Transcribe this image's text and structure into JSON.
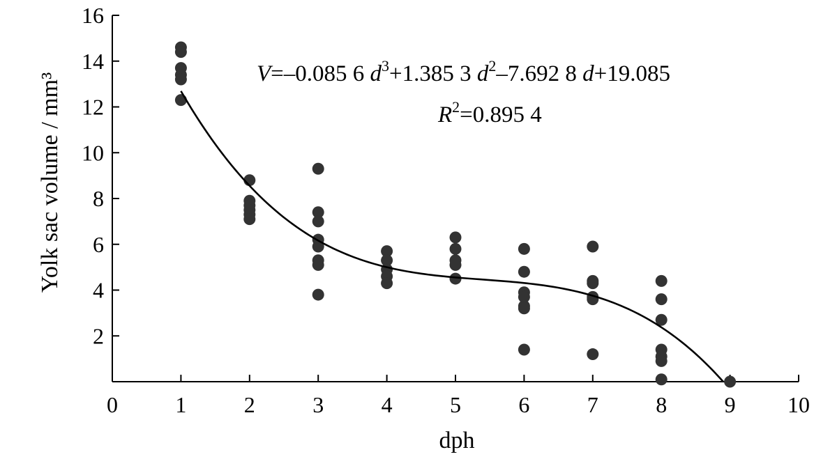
{
  "chart_data": {
    "type": "scatter",
    "xlabel": "dph",
    "ylabel": "Yolk sac volume / mm³",
    "xlim": [
      0,
      10
    ],
    "ylim": [
      0,
      16
    ],
    "xticks": [
      0,
      1,
      2,
      3,
      4,
      5,
      6,
      7,
      8,
      9,
      10
    ],
    "yticks": [
      2,
      4,
      6,
      8,
      10,
      12,
      14,
      16
    ],
    "points": [
      {
        "x": 1,
        "y": 14.6
      },
      {
        "x": 1,
        "y": 14.4
      },
      {
        "x": 1,
        "y": 13.7
      },
      {
        "x": 1,
        "y": 13.4
      },
      {
        "x": 1,
        "y": 13.2
      },
      {
        "x": 1,
        "y": 12.3
      },
      {
        "x": 2,
        "y": 8.8
      },
      {
        "x": 2,
        "y": 7.9
      },
      {
        "x": 2,
        "y": 7.7
      },
      {
        "x": 2,
        "y": 7.5
      },
      {
        "x": 2,
        "y": 7.3
      },
      {
        "x": 2,
        "y": 7.1
      },
      {
        "x": 3,
        "y": 9.3
      },
      {
        "x": 3,
        "y": 7.4
      },
      {
        "x": 3,
        "y": 7.0
      },
      {
        "x": 3,
        "y": 6.2
      },
      {
        "x": 3,
        "y": 5.9
      },
      {
        "x": 3,
        "y": 5.3
      },
      {
        "x": 3,
        "y": 5.1
      },
      {
        "x": 3,
        "y": 3.8
      },
      {
        "x": 4,
        "y": 5.7
      },
      {
        "x": 4,
        "y": 5.3
      },
      {
        "x": 4,
        "y": 4.9
      },
      {
        "x": 4,
        "y": 4.6
      },
      {
        "x": 4,
        "y": 4.3
      },
      {
        "x": 5,
        "y": 6.3
      },
      {
        "x": 5,
        "y": 5.8
      },
      {
        "x": 5,
        "y": 5.3
      },
      {
        "x": 5,
        "y": 5.1
      },
      {
        "x": 5,
        "y": 4.5
      },
      {
        "x": 6,
        "y": 5.8
      },
      {
        "x": 6,
        "y": 4.8
      },
      {
        "x": 6,
        "y": 3.9
      },
      {
        "x": 6,
        "y": 3.7
      },
      {
        "x": 6,
        "y": 3.3
      },
      {
        "x": 6,
        "y": 3.2
      },
      {
        "x": 6,
        "y": 1.4
      },
      {
        "x": 7,
        "y": 5.9
      },
      {
        "x": 7,
        "y": 4.4
      },
      {
        "x": 7,
        "y": 4.3
      },
      {
        "x": 7,
        "y": 3.7
      },
      {
        "x": 7,
        "y": 3.6
      },
      {
        "x": 7,
        "y": 1.2
      },
      {
        "x": 8,
        "y": 4.4
      },
      {
        "x": 8,
        "y": 3.6
      },
      {
        "x": 8,
        "y": 2.7
      },
      {
        "x": 8,
        "y": 1.4
      },
      {
        "x": 8,
        "y": 1.1
      },
      {
        "x": 8,
        "y": 0.9
      },
      {
        "x": 8,
        "y": 0.1
      },
      {
        "x": 9,
        "y": 0.0
      }
    ],
    "fit": {
      "a3": -0.0856,
      "a2": 1.3853,
      "a1": -7.6928,
      "a0": 19.085,
      "x_from": 1,
      "x_to": 8.9
    },
    "equation": {
      "v_symbol": "V",
      "terms": [
        "=–0.085 6 ",
        "d",
        "3",
        "+1.385 3 ",
        "d",
        "2",
        "–7.692 8 ",
        "d",
        "+19.085"
      ],
      "r_symbol": "R",
      "r_sup": "2",
      "r_value": "=0.895 4"
    }
  }
}
